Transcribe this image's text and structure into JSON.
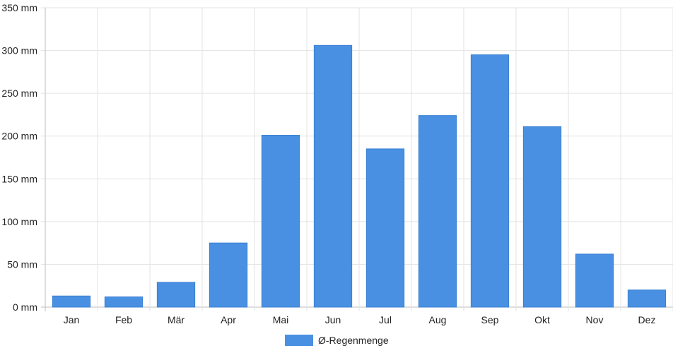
{
  "chart_data": {
    "type": "bar",
    "categories": [
      "Jan",
      "Feb",
      "Mär",
      "Apr",
      "Mai",
      "Jun",
      "Jul",
      "Aug",
      "Sep",
      "Okt",
      "Nov",
      "Dez"
    ],
    "series": [
      {
        "name": "Ø-Regenmenge",
        "color": "#4a90e2",
        "values": [
          13,
          12,
          29,
          75,
          201,
          306,
          185,
          224,
          295,
          211,
          62,
          20
        ]
      }
    ],
    "y_ticks": [
      "0 mm",
      "50 mm",
      "100 mm",
      "150 mm",
      "200 mm",
      "250 mm",
      "300 mm",
      "350 mm"
    ],
    "ylim": [
      0,
      350
    ],
    "grid": true,
    "legend_position": "bottom-center"
  }
}
